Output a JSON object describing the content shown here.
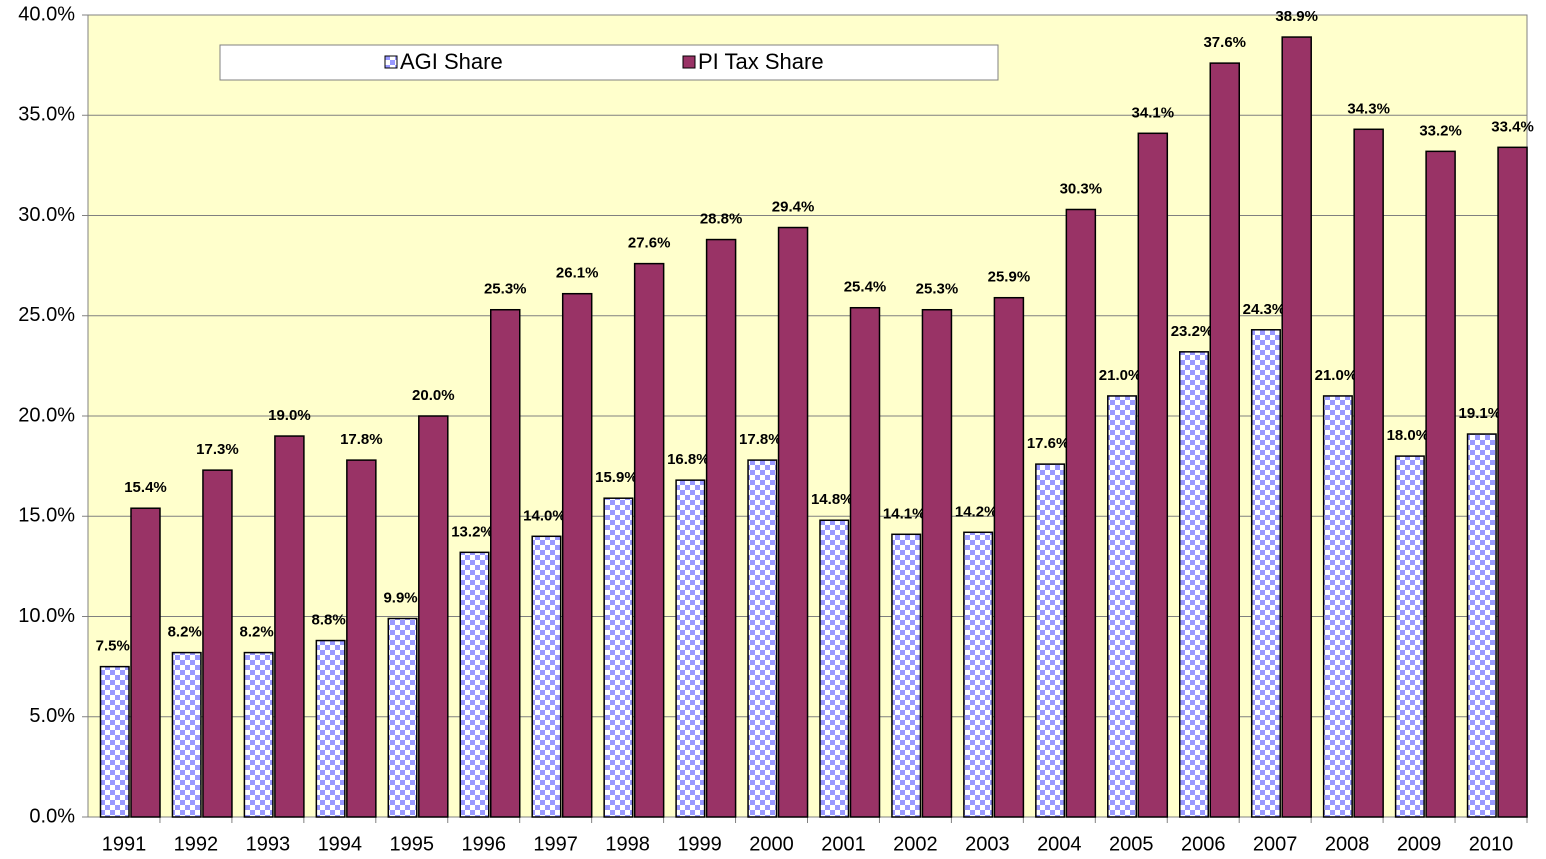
{
  "chart_data": {
    "type": "bar",
    "categories": [
      "1991",
      "1992",
      "1993",
      "1994",
      "1995",
      "1996",
      "1997",
      "1998",
      "1999",
      "2000",
      "2001",
      "2002",
      "2003",
      "2004",
      "2005",
      "2006",
      "2007",
      "2008",
      "2009",
      "2010"
    ],
    "series": [
      {
        "name": "AGI Share",
        "color": "#9999ff",
        "pattern": "checker",
        "values": [
          7.5,
          8.2,
          8.2,
          8.8,
          9.9,
          13.2,
          14.0,
          15.9,
          16.8,
          17.8,
          14.8,
          14.1,
          14.2,
          17.6,
          21.0,
          23.2,
          24.3,
          21.0,
          18.0,
          19.1
        ],
        "value_labels": [
          "7.5%",
          "8.2%",
          "8.2%",
          "8.8%",
          "9.9%",
          "13.2%",
          "14.0%",
          "15.9%",
          "16.8%",
          "17.8%",
          "14.8%",
          "14.1%",
          "14.2%",
          "17.6%",
          "21.0%",
          "23.2%",
          "24.3%",
          "21.0%",
          "18.0%",
          "19.1%"
        ]
      },
      {
        "name": "PI Tax Share",
        "color": "#993366",
        "values": [
          15.4,
          17.3,
          19.0,
          17.8,
          20.0,
          25.3,
          26.1,
          27.6,
          28.8,
          29.4,
          25.4,
          25.3,
          25.9,
          30.3,
          34.1,
          37.6,
          38.9,
          34.3,
          33.2,
          33.4
        ],
        "value_labels": [
          "15.4%",
          "17.3%",
          "19.0%",
          "17.8%",
          "20.0%",
          "25.3%",
          "26.1%",
          "27.6%",
          "28.8%",
          "29.4%",
          "25.4%",
          "25.3%",
          "25.9%",
          "30.3%",
          "34.1%",
          "37.6%",
          "38.9%",
          "34.3%",
          "33.2%",
          "33.4%"
        ]
      }
    ],
    "ylim": [
      0,
      40
    ],
    "yticks": [
      {
        "value": 0,
        "label": "0.0%"
      },
      {
        "value": 5,
        "label": "5.0%"
      },
      {
        "value": 10,
        "label": "10.0%"
      },
      {
        "value": 15,
        "label": "15.0%"
      },
      {
        "value": 20,
        "label": "20.0%"
      },
      {
        "value": 25,
        "label": "25.0%"
      },
      {
        "value": 30,
        "label": "30.0%"
      },
      {
        "value": 35,
        "label": "35.0%"
      },
      {
        "value": 40,
        "label": "40.0%"
      }
    ],
    "grid": true,
    "legend": "top"
  }
}
